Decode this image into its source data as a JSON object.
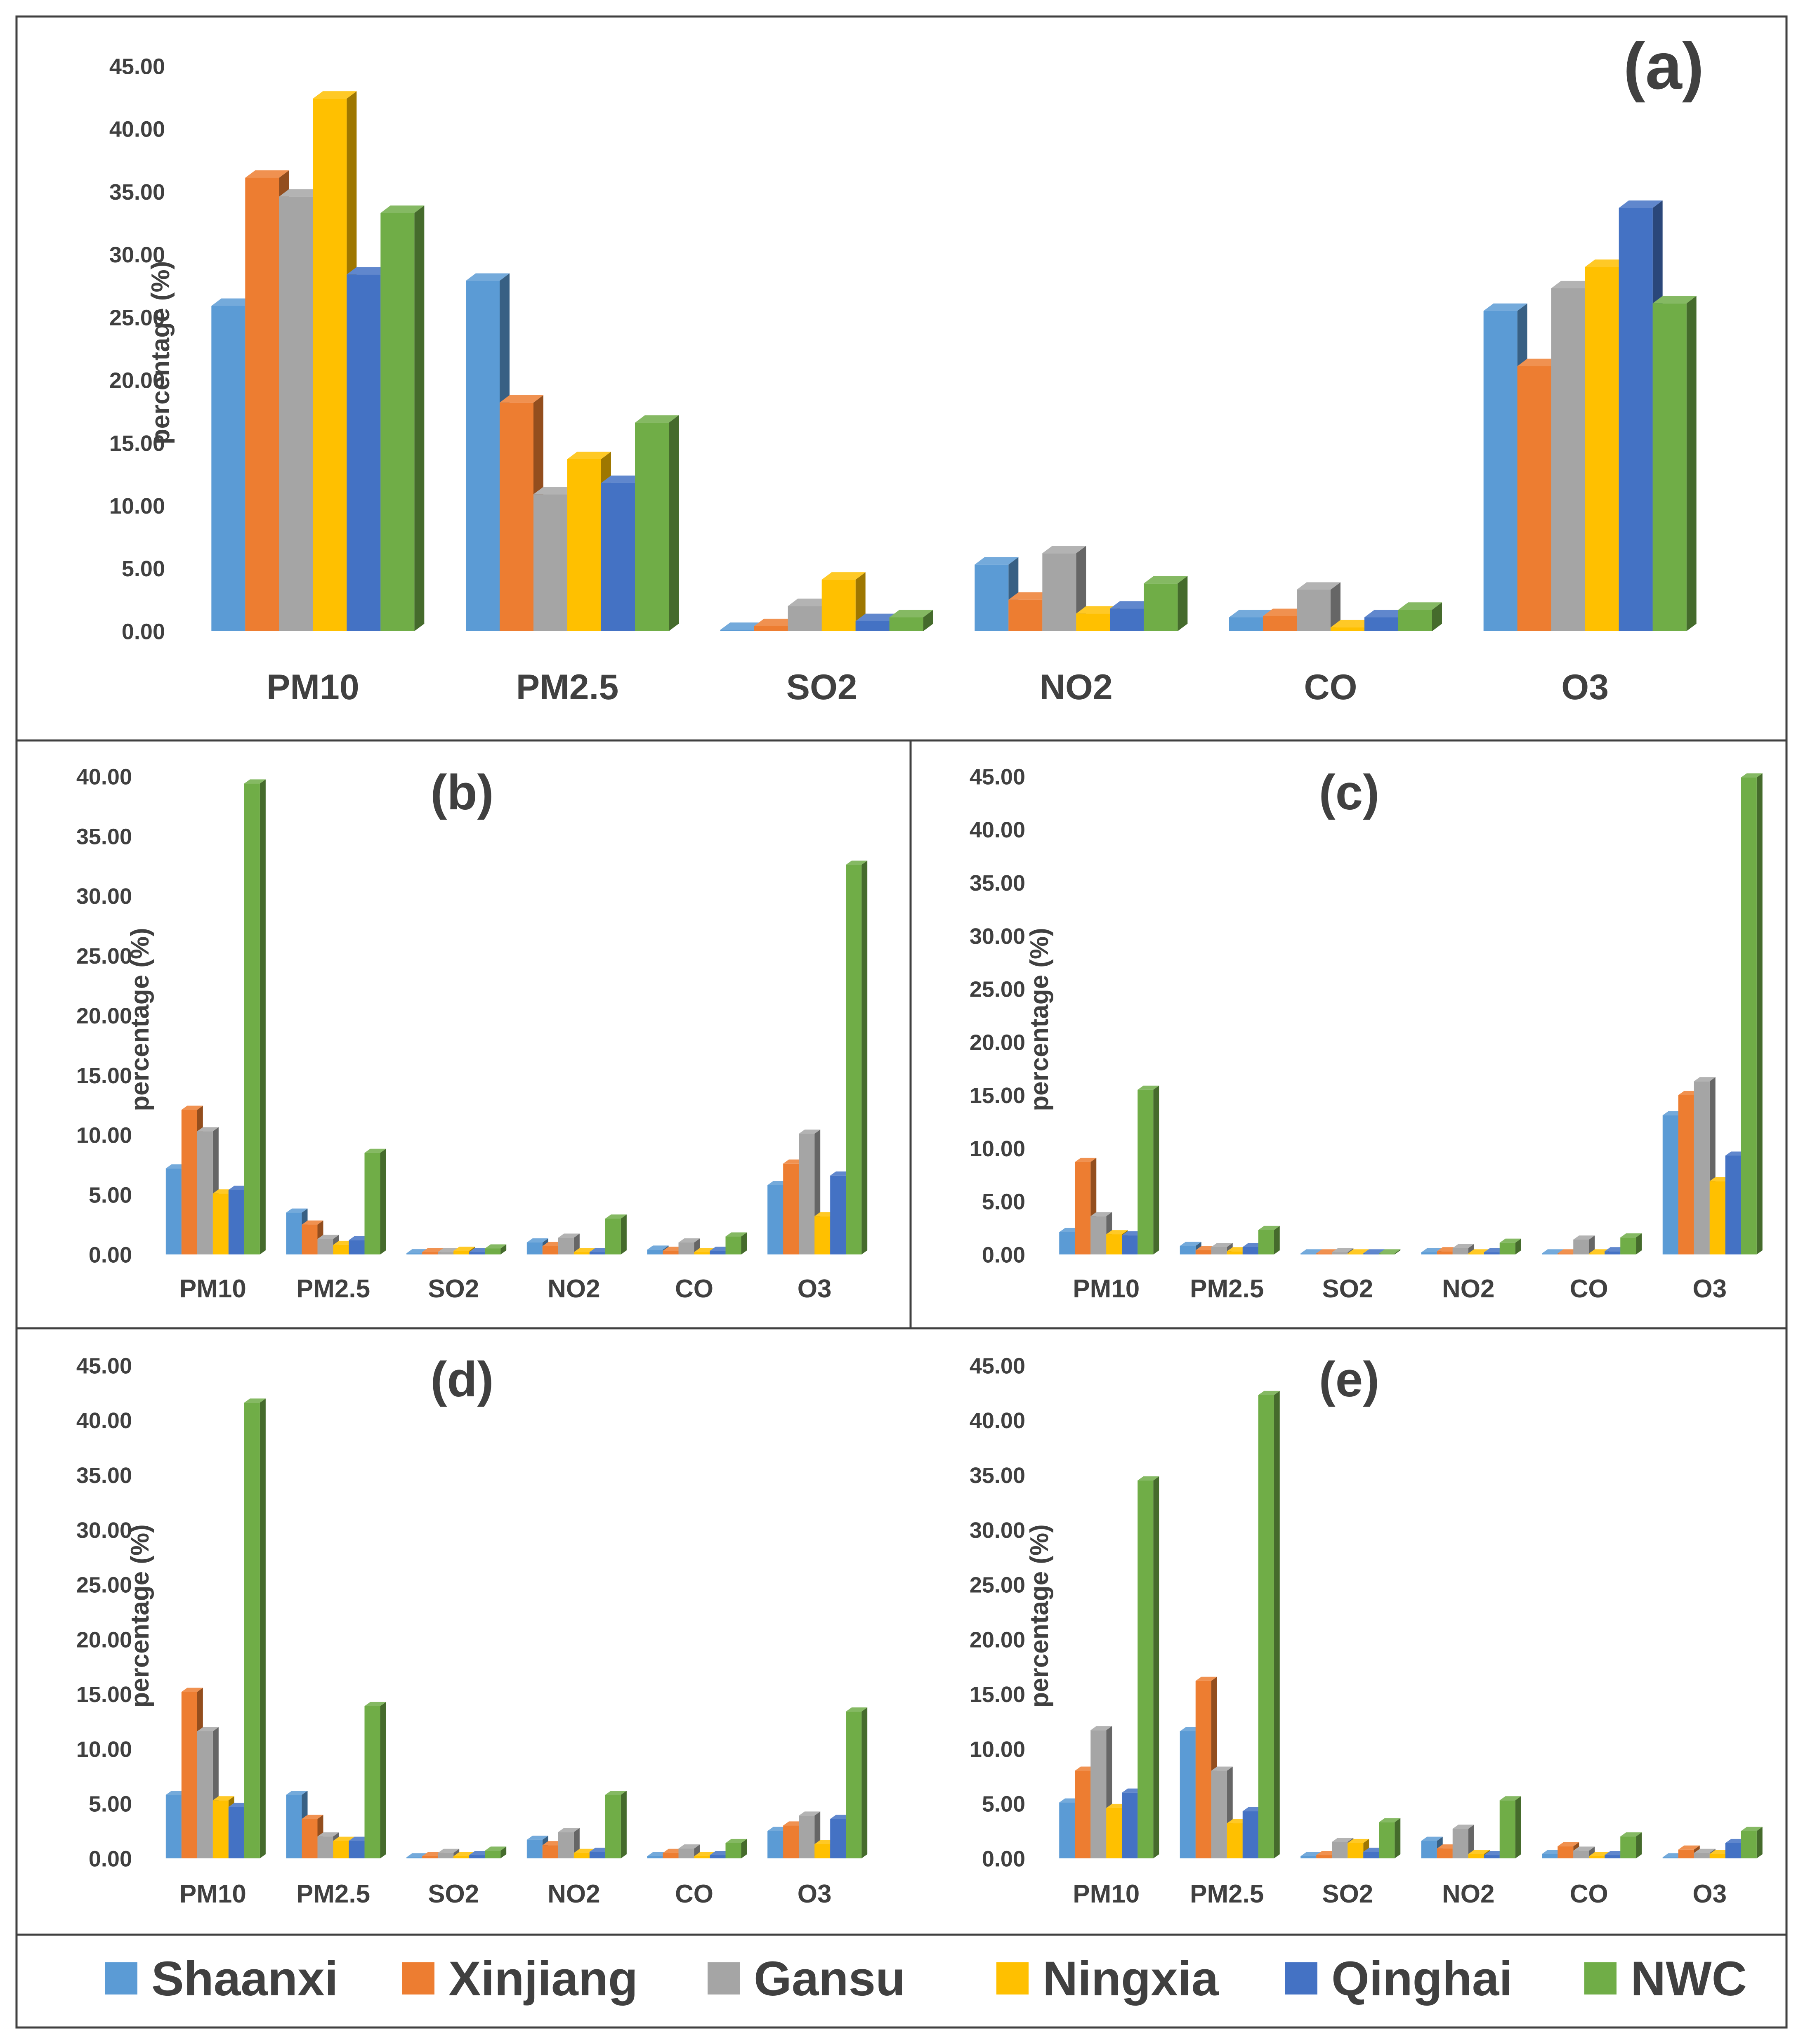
{
  "colors": {
    "series": [
      "#5B9BD5",
      "#ED7D31",
      "#A5A5A5",
      "#FFC000",
      "#4472C4",
      "#70AD47"
    ],
    "text": "#404040",
    "frame": "#404040"
  },
  "legend": [
    "Shaanxi",
    "Xinjiang",
    "Gansu",
    "Ningxia",
    "Qinghai",
    "NWC"
  ],
  "chart_data": [
    {
      "panel": "(a)",
      "type": "bar",
      "ylabel": "percentage (%)",
      "ylim": [
        0,
        45
      ],
      "yticks": [
        "0.00",
        "5.00",
        "10.00",
        "15.00",
        "20.00",
        "25.00",
        "30.00",
        "35.00",
        "40.00",
        "45.00"
      ],
      "categories": [
        "PM10",
        "PM2.5",
        "SO2",
        "NO2",
        "CO",
        "O3"
      ],
      "series": [
        {
          "name": "Shaanxi",
          "values": [
            25.9,
            27.9,
            0.1,
            5.3,
            1.1,
            25.5
          ]
        },
        {
          "name": "Xinjiang",
          "values": [
            36.1,
            18.2,
            0.4,
            2.5,
            1.2,
            21.1
          ]
        },
        {
          "name": "Gansu",
          "values": [
            34.6,
            10.9,
            2.0,
            6.2,
            3.3,
            27.3
          ]
        },
        {
          "name": "Ningxia",
          "values": [
            42.4,
            13.7,
            4.1,
            1.4,
            0.3,
            29.0
          ]
        },
        {
          "name": "Qinghai",
          "values": [
            28.4,
            11.8,
            0.8,
            1.8,
            1.1,
            33.7
          ]
        },
        {
          "name": "NWC",
          "values": [
            33.3,
            16.6,
            1.1,
            3.8,
            1.7,
            26.1
          ]
        }
      ]
    },
    {
      "panel": "(b)",
      "type": "bar",
      "ylabel": "percentage (%)",
      "ylim": [
        0,
        40
      ],
      "yticks": [
        "0.00",
        "5.00",
        "10.00",
        "15.00",
        "20.00",
        "25.00",
        "30.00",
        "35.00",
        "40.00"
      ],
      "categories": [
        "PM10",
        "PM2.5",
        "SO2",
        "NO2",
        "CO",
        "O3"
      ],
      "series": [
        {
          "name": "Shaanxi",
          "values": [
            7.2,
            3.5,
            0.1,
            1.0,
            0.4,
            5.8
          ]
        },
        {
          "name": "Xinjiang",
          "values": [
            12.1,
            2.5,
            0.2,
            0.7,
            0.3,
            7.6
          ]
        },
        {
          "name": "Gansu",
          "values": [
            10.3,
            1.3,
            0.2,
            1.4,
            1.0,
            10.1
          ]
        },
        {
          "name": "Ningxia",
          "values": [
            5.1,
            0.8,
            0.3,
            0.2,
            0.2,
            3.2
          ]
        },
        {
          "name": "Qinghai",
          "values": [
            5.4,
            1.2,
            0.2,
            0.2,
            0.3,
            6.6
          ]
        },
        {
          "name": "NWC",
          "values": [
            39.4,
            8.5,
            0.5,
            3.0,
            1.5,
            32.6
          ]
        }
      ]
    },
    {
      "panel": "(c)",
      "type": "bar",
      "ylabel": "percentage (%)",
      "ylim": [
        0,
        45
      ],
      "yticks": [
        "0.00",
        "5.00",
        "10.00",
        "15.00",
        "20.00",
        "25.00",
        "30.00",
        "35.00",
        "40.00",
        "45.00"
      ],
      "categories": [
        "PM10",
        "PM2.5",
        "SO2",
        "NO2",
        "CO",
        "O3"
      ],
      "series": [
        {
          "name": "Shaanxi",
          "values": [
            2.1,
            0.8,
            0.1,
            0.2,
            0.1,
            13.1
          ]
        },
        {
          "name": "Xinjiang",
          "values": [
            8.7,
            0.4,
            0.1,
            0.3,
            0.1,
            15.0
          ]
        },
        {
          "name": "Gansu",
          "values": [
            3.6,
            0.7,
            0.2,
            0.6,
            1.4,
            16.3
          ]
        },
        {
          "name": "Ningxia",
          "values": [
            1.9,
            0.3,
            0.1,
            0.1,
            0.1,
            6.9
          ]
        },
        {
          "name": "Qinghai",
          "values": [
            1.8,
            0.7,
            0.1,
            0.2,
            0.3,
            9.3
          ]
        },
        {
          "name": "NWC",
          "values": [
            15.5,
            2.3,
            0.1,
            1.1,
            1.6,
            44.9
          ]
        }
      ]
    },
    {
      "panel": "(d)",
      "type": "bar",
      "ylabel": "percentage (%)",
      "ylim": [
        0,
        45
      ],
      "yticks": [
        "0.00",
        "5.00",
        "10.00",
        "15.00",
        "20.00",
        "25.00",
        "30.00",
        "35.00",
        "40.00",
        "45.00"
      ],
      "categories": [
        "PM10",
        "PM2.5",
        "SO2",
        "NO2",
        "CO",
        "O3"
      ],
      "series": [
        {
          "name": "Shaanxi",
          "values": [
            5.8,
            5.8,
            0.1,
            1.7,
            0.2,
            2.5
          ]
        },
        {
          "name": "Xinjiang",
          "values": [
            15.2,
            3.6,
            0.2,
            1.2,
            0.5,
            3.0
          ]
        },
        {
          "name": "Gansu",
          "values": [
            11.6,
            2.0,
            0.5,
            2.4,
            0.9,
            3.9
          ]
        },
        {
          "name": "Ningxia",
          "values": [
            5.3,
            1.6,
            0.2,
            0.5,
            0.2,
            1.3
          ]
        },
        {
          "name": "Qinghai",
          "values": [
            4.7,
            1.6,
            0.3,
            0.6,
            0.3,
            3.6
          ]
        },
        {
          "name": "NWC",
          "values": [
            41.6,
            13.9,
            0.7,
            5.8,
            1.4,
            13.4
          ]
        }
      ]
    },
    {
      "panel": "(e)",
      "type": "bar",
      "ylabel": "percentage (%)",
      "ylim": [
        0,
        45
      ],
      "yticks": [
        "0.00",
        "5.00",
        "10.00",
        "15.00",
        "20.00",
        "25.00",
        "30.00",
        "35.00",
        "40.00",
        "45.00"
      ],
      "categories": [
        "PM10",
        "PM2.5",
        "SO2",
        "NO2",
        "CO",
        "O3"
      ],
      "series": [
        {
          "name": "Shaanxi",
          "values": [
            5.1,
            11.6,
            0.2,
            1.6,
            0.4,
            0.1
          ]
        },
        {
          "name": "Xinjiang",
          "values": [
            8.0,
            16.2,
            0.3,
            0.9,
            1.1,
            0.8
          ]
        },
        {
          "name": "Gansu",
          "values": [
            11.7,
            8.0,
            1.5,
            2.7,
            0.7,
            0.5
          ]
        },
        {
          "name": "Ningxia",
          "values": [
            4.6,
            3.2,
            1.4,
            0.4,
            0.2,
            0.4
          ]
        },
        {
          "name": "Qinghai",
          "values": [
            6.0,
            4.3,
            0.6,
            0.3,
            0.3,
            1.4
          ]
        },
        {
          "name": "NWC",
          "values": [
            34.5,
            42.3,
            3.3,
            5.3,
            2.0,
            2.5
          ]
        }
      ]
    }
  ]
}
